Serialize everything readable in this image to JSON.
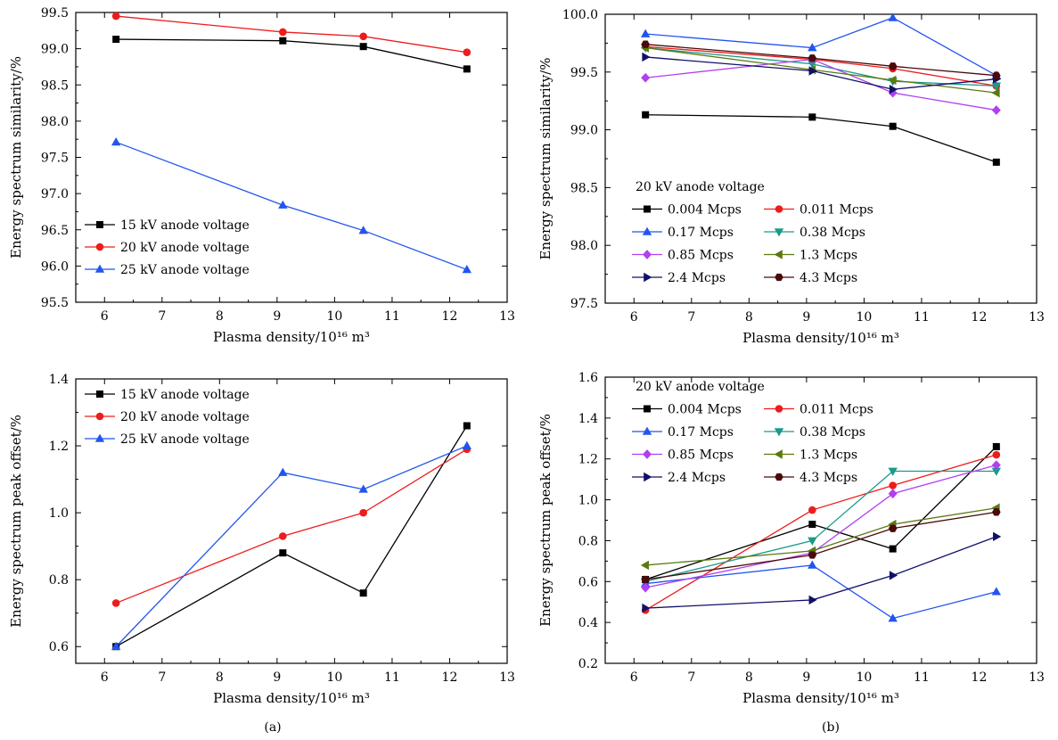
{
  "panel_labels": [
    "(a)",
    "(b)"
  ],
  "chart_data": [
    {
      "type": "line",
      "xlabel": "Plasma density/10¹⁶ m³",
      "ylabel": "Energy spectrum similarity/%",
      "xlim": [
        5.5,
        13
      ],
      "ylim": [
        95.5,
        99.5
      ],
      "xticks": [
        6,
        7,
        8,
        9,
        10,
        11,
        12,
        13
      ],
      "yticks": [
        95.5,
        96.0,
        96.5,
        97.0,
        97.5,
        98.0,
        98.5,
        99.0,
        99.5
      ],
      "ytick_decimals": 1,
      "legend_title": "",
      "legend_position": "bottom-left",
      "x": [
        6.2,
        9.1,
        10.5,
        12.3
      ],
      "series": [
        {
          "name": "15 kV anode voltage",
          "values": [
            99.13,
            99.11,
            99.03,
            98.72
          ],
          "color": "#000000",
          "marker": "square"
        },
        {
          "name": "20 kV anode voltage",
          "values": [
            99.45,
            99.23,
            99.17,
            98.95
          ],
          "color": "#ee1c1c",
          "marker": "circle"
        },
        {
          "name": "25 kV anode voltage",
          "values": [
            97.71,
            96.84,
            96.49,
            95.95
          ],
          "color": "#2255ee",
          "marker": "triangle-up"
        }
      ]
    },
    {
      "type": "line",
      "xlabel": "Plasma density/10¹⁶ m³",
      "ylabel": "Energy spectrum similarity/%",
      "xlim": [
        5.5,
        13
      ],
      "ylim": [
        97.5,
        100.0
      ],
      "xticks": [
        6,
        7,
        8,
        9,
        10,
        11,
        12,
        13
      ],
      "yticks": [
        97.5,
        98.0,
        98.5,
        99.0,
        99.5,
        100.0
      ],
      "ytick_decimals": 1,
      "legend_title": "20 kV anode voltage",
      "legend_position": "center-left",
      "x": [
        6.2,
        9.1,
        10.5,
        12.3
      ],
      "series": [
        {
          "name": "0.004 Mcps",
          "values": [
            99.13,
            99.11,
            99.03,
            98.72
          ],
          "color": "#000000",
          "marker": "square"
        },
        {
          "name": "0.011 Mcps",
          "values": [
            99.72,
            99.61,
            99.53,
            99.38
          ],
          "color": "#ee1c1c",
          "marker": "circle"
        },
        {
          "name": "0.17 Mcps",
          "values": [
            99.83,
            99.71,
            99.97,
            99.47
          ],
          "color": "#2255ee",
          "marker": "triangle-up"
        },
        {
          "name": "0.38 Mcps",
          "values": [
            99.71,
            99.57,
            99.42,
            99.38
          ],
          "color": "#1a9a8a",
          "marker": "triangle-down"
        },
        {
          "name": "0.85 Mcps",
          "values": [
            99.45,
            99.61,
            99.32,
            99.17
          ],
          "color": "#b040f0",
          "marker": "diamond"
        },
        {
          "name": "1.3 Mcps",
          "values": [
            99.71,
            99.52,
            99.43,
            99.32
          ],
          "color": "#5a7a10",
          "marker": "triangle-left"
        },
        {
          "name": "2.4 Mcps",
          "values": [
            99.63,
            99.51,
            99.35,
            99.44
          ],
          "color": "#10106a",
          "marker": "triangle-right"
        },
        {
          "name": "4.3 Mcps",
          "values": [
            99.74,
            99.62,
            99.55,
            99.47
          ],
          "color": "#4a0a0a",
          "marker": "hexagon"
        }
      ]
    },
    {
      "type": "line",
      "xlabel": "Plasma density/10¹⁶ m³",
      "ylabel": "Energy spectrum peak offset/%",
      "xlim": [
        5.5,
        13
      ],
      "ylim": [
        0.55,
        1.4
      ],
      "xticks": [
        6,
        7,
        8,
        9,
        10,
        11,
        12,
        13
      ],
      "yticks": [
        0.6,
        0.8,
        1.0,
        1.2,
        1.4
      ],
      "ytick_decimals": 1,
      "legend_title": "",
      "legend_position": "top-left",
      "x": [
        6.2,
        9.1,
        10.5,
        12.3
      ],
      "series": [
        {
          "name": "15 kV anode voltage",
          "values": [
            0.6,
            0.88,
            0.76,
            1.26
          ],
          "color": "#000000",
          "marker": "square"
        },
        {
          "name": "20 kV anode voltage",
          "values": [
            0.73,
            0.93,
            1.0,
            1.19
          ],
          "color": "#ee1c1c",
          "marker": "circle"
        },
        {
          "name": "25 kV anode voltage",
          "values": [
            0.6,
            1.12,
            1.07,
            1.2
          ],
          "color": "#2255ee",
          "marker": "triangle-up"
        }
      ]
    },
    {
      "type": "line",
      "xlabel": "Plasma density/10¹⁶ m³",
      "ylabel": "Energy spectrum peak offset/%",
      "xlim": [
        5.5,
        13
      ],
      "ylim": [
        0.2,
        1.6
      ],
      "xticks": [
        6,
        7,
        8,
        9,
        10,
        11,
        12,
        13
      ],
      "yticks": [
        0.2,
        0.4,
        0.6,
        0.8,
        1.0,
        1.2,
        1.4,
        1.6
      ],
      "ytick_decimals": 1,
      "legend_title": "20 kV anode voltage",
      "legend_position": "top-left",
      "x": [
        6.2,
        9.1,
        10.5,
        12.3
      ],
      "series": [
        {
          "name": "0.004 Mcps",
          "values": [
            0.61,
            0.88,
            0.76,
            1.26
          ],
          "color": "#000000",
          "marker": "square"
        },
        {
          "name": "0.011 Mcps",
          "values": [
            0.46,
            0.95,
            1.07,
            1.22
          ],
          "color": "#ee1c1c",
          "marker": "circle"
        },
        {
          "name": "0.17 Mcps",
          "values": [
            0.59,
            0.68,
            0.42,
            0.55
          ],
          "color": "#2255ee",
          "marker": "triangle-up"
        },
        {
          "name": "0.38 Mcps",
          "values": [
            0.6,
            0.8,
            1.14,
            1.14
          ],
          "color": "#1a9a8a",
          "marker": "triangle-down"
        },
        {
          "name": "0.85 Mcps",
          "values": [
            0.57,
            0.74,
            1.03,
            1.17
          ],
          "color": "#b040f0",
          "marker": "diamond"
        },
        {
          "name": "1.3 Mcps",
          "values": [
            0.68,
            0.75,
            0.88,
            0.96
          ],
          "color": "#5a7a10",
          "marker": "triangle-left"
        },
        {
          "name": "2.4 Mcps",
          "values": [
            0.47,
            0.51,
            0.63,
            0.82
          ],
          "color": "#10106a",
          "marker": "triangle-right"
        },
        {
          "name": "4.3 Mcps",
          "values": [
            0.61,
            0.73,
            0.86,
            0.94
          ],
          "color": "#4a0a0a",
          "marker": "hexagon"
        }
      ]
    }
  ]
}
